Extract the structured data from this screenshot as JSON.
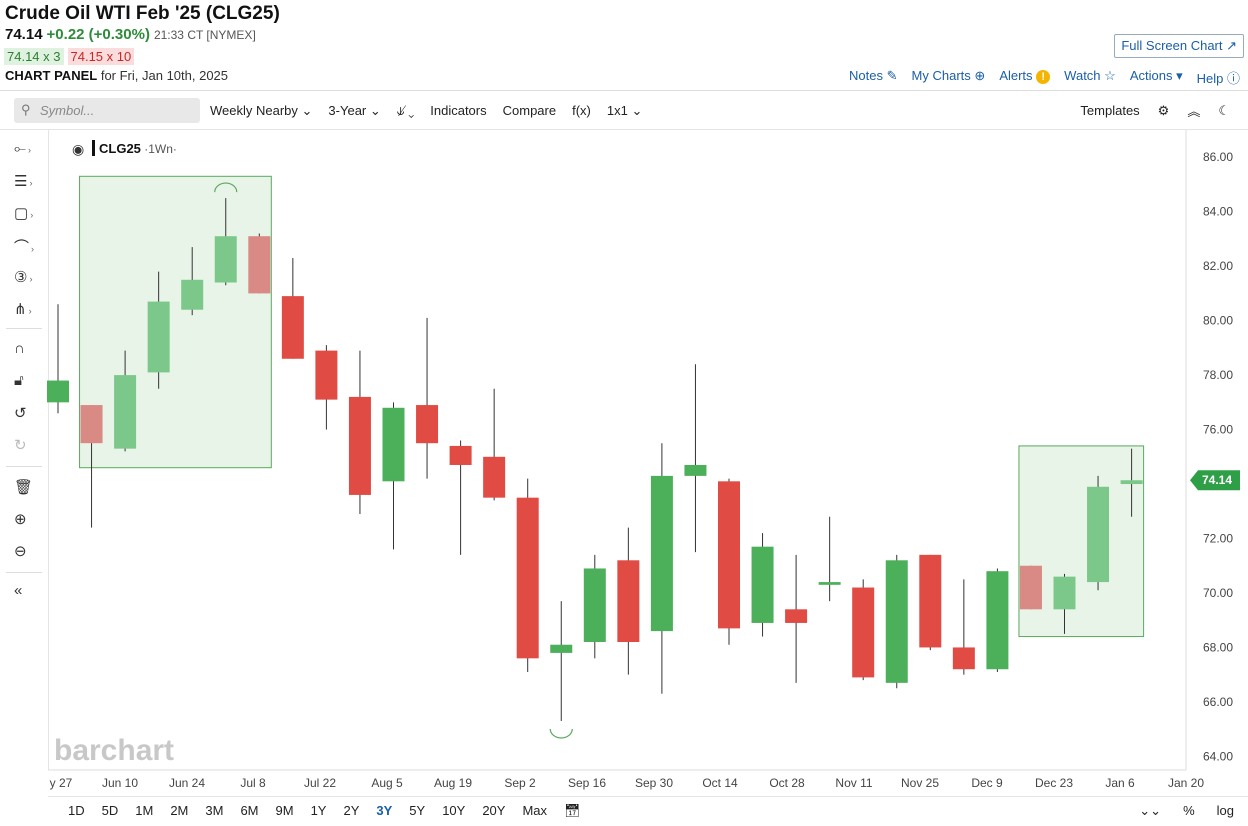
{
  "header": {
    "title": "Crude Oil WTI Feb '25 (CLG25)",
    "last": "74.14",
    "change": "+0.22 (+0.30%)",
    "time": "21:33 CT [NYMEX]",
    "bid": "74.14 x 3",
    "ask": "74.15 x 10",
    "panel_label": "CHART PANEL",
    "panel_date": "for Fri, Jan 10th, 2025",
    "fullscreen_label": "Full Screen Chart ↗"
  },
  "topnav": {
    "notes": "Notes",
    "my_charts": "My Charts",
    "alerts": "Alerts",
    "watch": "Watch",
    "actions": "Actions",
    "help": "Help"
  },
  "toolbar": {
    "search_placeholder": "Symbol...",
    "interval": "Weekly Nearby ⌄",
    "range": "3-Year ⌄",
    "chart_type": "⫝̸ ⌄",
    "indicators": "Indicators",
    "compare": "Compare",
    "fx": "f(x)",
    "layout": "1x1 ⌄",
    "templates": "Templates"
  },
  "bottom": {
    "timeframes": [
      "1D",
      "5D",
      "1M",
      "2M",
      "3M",
      "6M",
      "9M",
      "1Y",
      "2Y",
      "3Y",
      "5Y",
      "10Y",
      "20Y",
      "Max"
    ],
    "selected": "3Y",
    "percent": "%",
    "log": "log"
  },
  "colors": {
    "up": "#4caf5a",
    "down": "#e04b44",
    "up_light": "#7cc88a",
    "down_light": "#d98a84",
    "box_fill": "#e8f4e8",
    "box_stroke": "#5aa85f",
    "last_badge": "#2e9e47"
  },
  "chart_data": {
    "type": "candlestick",
    "symbol_label": "CLG25",
    "interval_label": "·1Wn·",
    "watermark": "barchart",
    "last_price_label": "74.14",
    "ylim": [
      63.5,
      87.0
    ],
    "y_ticks": [
      64,
      66,
      68,
      70,
      72,
      74,
      76,
      78,
      80,
      82,
      84,
      86
    ],
    "x_tick_labels": [
      "y 27",
      "Jun 10",
      "Jun 24",
      "Jul 8",
      "Jul 22",
      "Aug 5",
      "Aug 19",
      "Sep 2",
      "Sep 16",
      "Sep 30",
      "Oct 14",
      "Oct 28",
      "Nov 11",
      "Nov 25",
      "Dec 9",
      "Dec 23",
      "Jan 6",
      "Jan 20"
    ],
    "candles": [
      {
        "o": 77.0,
        "h": 80.6,
        "l": 76.6,
        "c": 77.8
      },
      {
        "o": 76.9,
        "h": 76.9,
        "l": 72.4,
        "c": 75.5,
        "hl": true
      },
      {
        "o": 75.3,
        "h": 78.9,
        "l": 75.2,
        "c": 78.0,
        "hl": true
      },
      {
        "o": 78.1,
        "h": 81.8,
        "l": 77.5,
        "c": 80.7,
        "hl": true
      },
      {
        "o": 80.4,
        "h": 82.7,
        "l": 80.2,
        "c": 81.5,
        "hl": true
      },
      {
        "o": 81.4,
        "h": 84.5,
        "l": 81.3,
        "c": 83.1,
        "hl": true
      },
      {
        "o": 83.1,
        "h": 83.2,
        "l": 81.0,
        "c": 81.0,
        "hl": true
      },
      {
        "o": 80.9,
        "h": 82.3,
        "l": 78.6,
        "c": 78.6
      },
      {
        "o": 78.9,
        "h": 79.1,
        "l": 76.0,
        "c": 77.1
      },
      {
        "o": 77.2,
        "h": 78.9,
        "l": 72.9,
        "c": 73.6
      },
      {
        "o": 74.1,
        "h": 77.0,
        "l": 71.6,
        "c": 76.8
      },
      {
        "o": 76.9,
        "h": 80.1,
        "l": 74.2,
        "c": 75.5
      },
      {
        "o": 75.4,
        "h": 75.6,
        "l": 71.4,
        "c": 74.7
      },
      {
        "o": 75.0,
        "h": 77.5,
        "l": 73.4,
        "c": 73.5
      },
      {
        "o": 73.5,
        "h": 74.2,
        "l": 67.1,
        "c": 67.6
      },
      {
        "o": 67.8,
        "h": 69.7,
        "l": 65.3,
        "c": 68.1
      },
      {
        "o": 68.2,
        "h": 71.4,
        "l": 67.6,
        "c": 70.9
      },
      {
        "o": 71.2,
        "h": 72.4,
        "l": 67.0,
        "c": 68.2
      },
      {
        "o": 68.6,
        "h": 75.5,
        "l": 66.3,
        "c": 74.3
      },
      {
        "o": 74.3,
        "h": 78.4,
        "l": 71.5,
        "c": 74.7
      },
      {
        "o": 74.1,
        "h": 74.2,
        "l": 68.1,
        "c": 68.7
      },
      {
        "o": 68.9,
        "h": 72.2,
        "l": 68.4,
        "c": 71.7
      },
      {
        "o": 69.4,
        "h": 71.4,
        "l": 66.7,
        "c": 68.9
      },
      {
        "o": 70.3,
        "h": 72.8,
        "l": 69.7,
        "c": 70.4
      },
      {
        "o": 70.2,
        "h": 70.5,
        "l": 66.8,
        "c": 66.9
      },
      {
        "o": 66.7,
        "h": 71.4,
        "l": 66.5,
        "c": 71.2
      },
      {
        "o": 71.4,
        "h": 71.4,
        "l": 67.9,
        "c": 68.0
      },
      {
        "o": 68.0,
        "h": 70.5,
        "l": 67.0,
        "c": 67.2
      },
      {
        "o": 67.2,
        "h": 70.9,
        "l": 67.1,
        "c": 70.8
      },
      {
        "o": 71.0,
        "h": 71.0,
        "l": 69.4,
        "c": 69.4,
        "hl": true
      },
      {
        "o": 69.4,
        "h": 70.7,
        "l": 68.5,
        "c": 70.6,
        "hl": true
      },
      {
        "o": 70.4,
        "h": 74.3,
        "l": 70.1,
        "c": 73.9,
        "hl": true
      },
      {
        "o": 74.0,
        "h": 75.3,
        "l": 72.8,
        "c": 74.14,
        "hl": true
      }
    ],
    "highlight_boxes": [
      {
        "from_index": 1,
        "to_index": 6,
        "y_top": 85.3,
        "y_bottom": 74.6
      },
      {
        "from_index": 29,
        "to_index": 32,
        "y_top": 75.4,
        "y_bottom": 68.4
      }
    ]
  }
}
